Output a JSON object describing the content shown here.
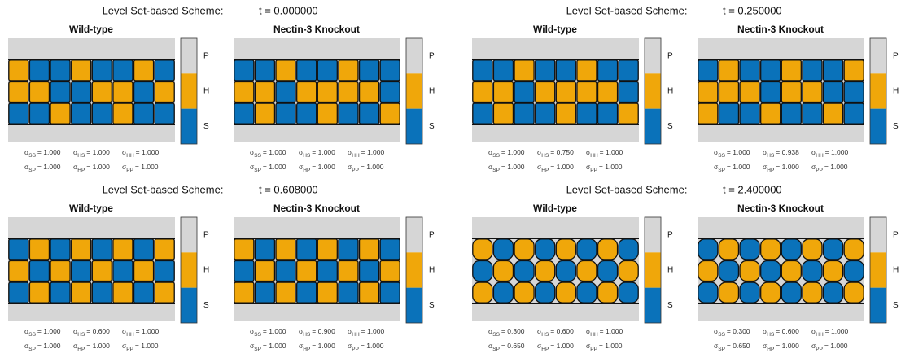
{
  "sigma": "σ",
  "colorbar": [
    "P",
    "H",
    "S"
  ],
  "groups": [
    {
      "scheme": "Level Set-based Scheme:",
      "time": "t = 0.000000",
      "panels": [
        {
          "title": "Wild-type",
          "params": [
            [
              "SS",
              "= 1.000"
            ],
            [
              "HS",
              "= 1.000"
            ],
            [
              "HH",
              "= 1.000"
            ],
            [
              "SP",
              "= 1.000"
            ],
            [
              "HP",
              "= 1.000"
            ],
            [
              "PP",
              "= 1.000"
            ]
          ]
        },
        {
          "title": "Nectin-3 Knockout",
          "params": [
            [
              "SS",
              "= 1.000"
            ],
            [
              "HS",
              "= 1.000"
            ],
            [
              "HH",
              "= 1.000"
            ],
            [
              "SP",
              "= 1.000"
            ],
            [
              "HP",
              "= 1.000"
            ],
            [
              "PP",
              "= 1.000"
            ]
          ]
        }
      ]
    },
    {
      "scheme": "Level Set-based Scheme:",
      "time": "t = 0.250000",
      "panels": [
        {
          "title": "Wild-type",
          "params": [
            [
              "SS",
              "= 1.000"
            ],
            [
              "HS",
              "= 0.750"
            ],
            [
              "HH",
              "= 1.000"
            ],
            [
              "SP",
              "= 1.000"
            ],
            [
              "HP",
              "= 1.000"
            ],
            [
              "PP",
              "= 1.000"
            ]
          ]
        },
        {
          "title": "Nectin-3 Knockout",
          "params": [
            [
              "SS",
              "= 1.000"
            ],
            [
              "HS",
              "= 0.938"
            ],
            [
              "HH",
              "= 1.000"
            ],
            [
              "SP",
              "= 1.000"
            ],
            [
              "HP",
              "= 1.000"
            ],
            [
              "PP",
              "= 1.000"
            ]
          ]
        }
      ]
    },
    {
      "scheme": "Level Set-based Scheme:",
      "time": "t = 0.608000",
      "panels": [
        {
          "title": "Wild-type",
          "params": [
            [
              "SS",
              "= 1.000"
            ],
            [
              "HS",
              "= 0.600"
            ],
            [
              "HH",
              "= 1.000"
            ],
            [
              "SP",
              "= 1.000"
            ],
            [
              "HP",
              "= 1.000"
            ],
            [
              "PP",
              "= 1.000"
            ]
          ]
        },
        {
          "title": "Nectin-3 Knockout",
          "params": [
            [
              "SS",
              "= 1.000"
            ],
            [
              "HS",
              "= 0.900"
            ],
            [
              "HH",
              "= 1.000"
            ],
            [
              "SP",
              "= 1.000"
            ],
            [
              "HP",
              "= 1.000"
            ],
            [
              "PP",
              "= 1.000"
            ]
          ]
        }
      ]
    },
    {
      "scheme": "Level Set-based Scheme:",
      "time": "t = 2.400000",
      "panels": [
        {
          "title": "Wild-type",
          "params": [
            [
              "SS",
              "= 0.300"
            ],
            [
              "HS",
              "= 0.600"
            ],
            [
              "HH",
              "= 1.000"
            ],
            [
              "SP",
              "= 0.650"
            ],
            [
              "HP",
              "= 1.000"
            ],
            [
              "PP",
              "= 1.000"
            ]
          ]
        },
        {
          "title": "Nectin-3 Knockout",
          "params": [
            [
              "SS",
              "= 0.300"
            ],
            [
              "HS",
              "= 0.600"
            ],
            [
              "HH",
              "= 1.000"
            ],
            [
              "SP",
              "= 0.650"
            ],
            [
              "HP",
              "= 1.000"
            ],
            [
              "PP",
              "= 1.000"
            ]
          ]
        }
      ]
    }
  ]
}
